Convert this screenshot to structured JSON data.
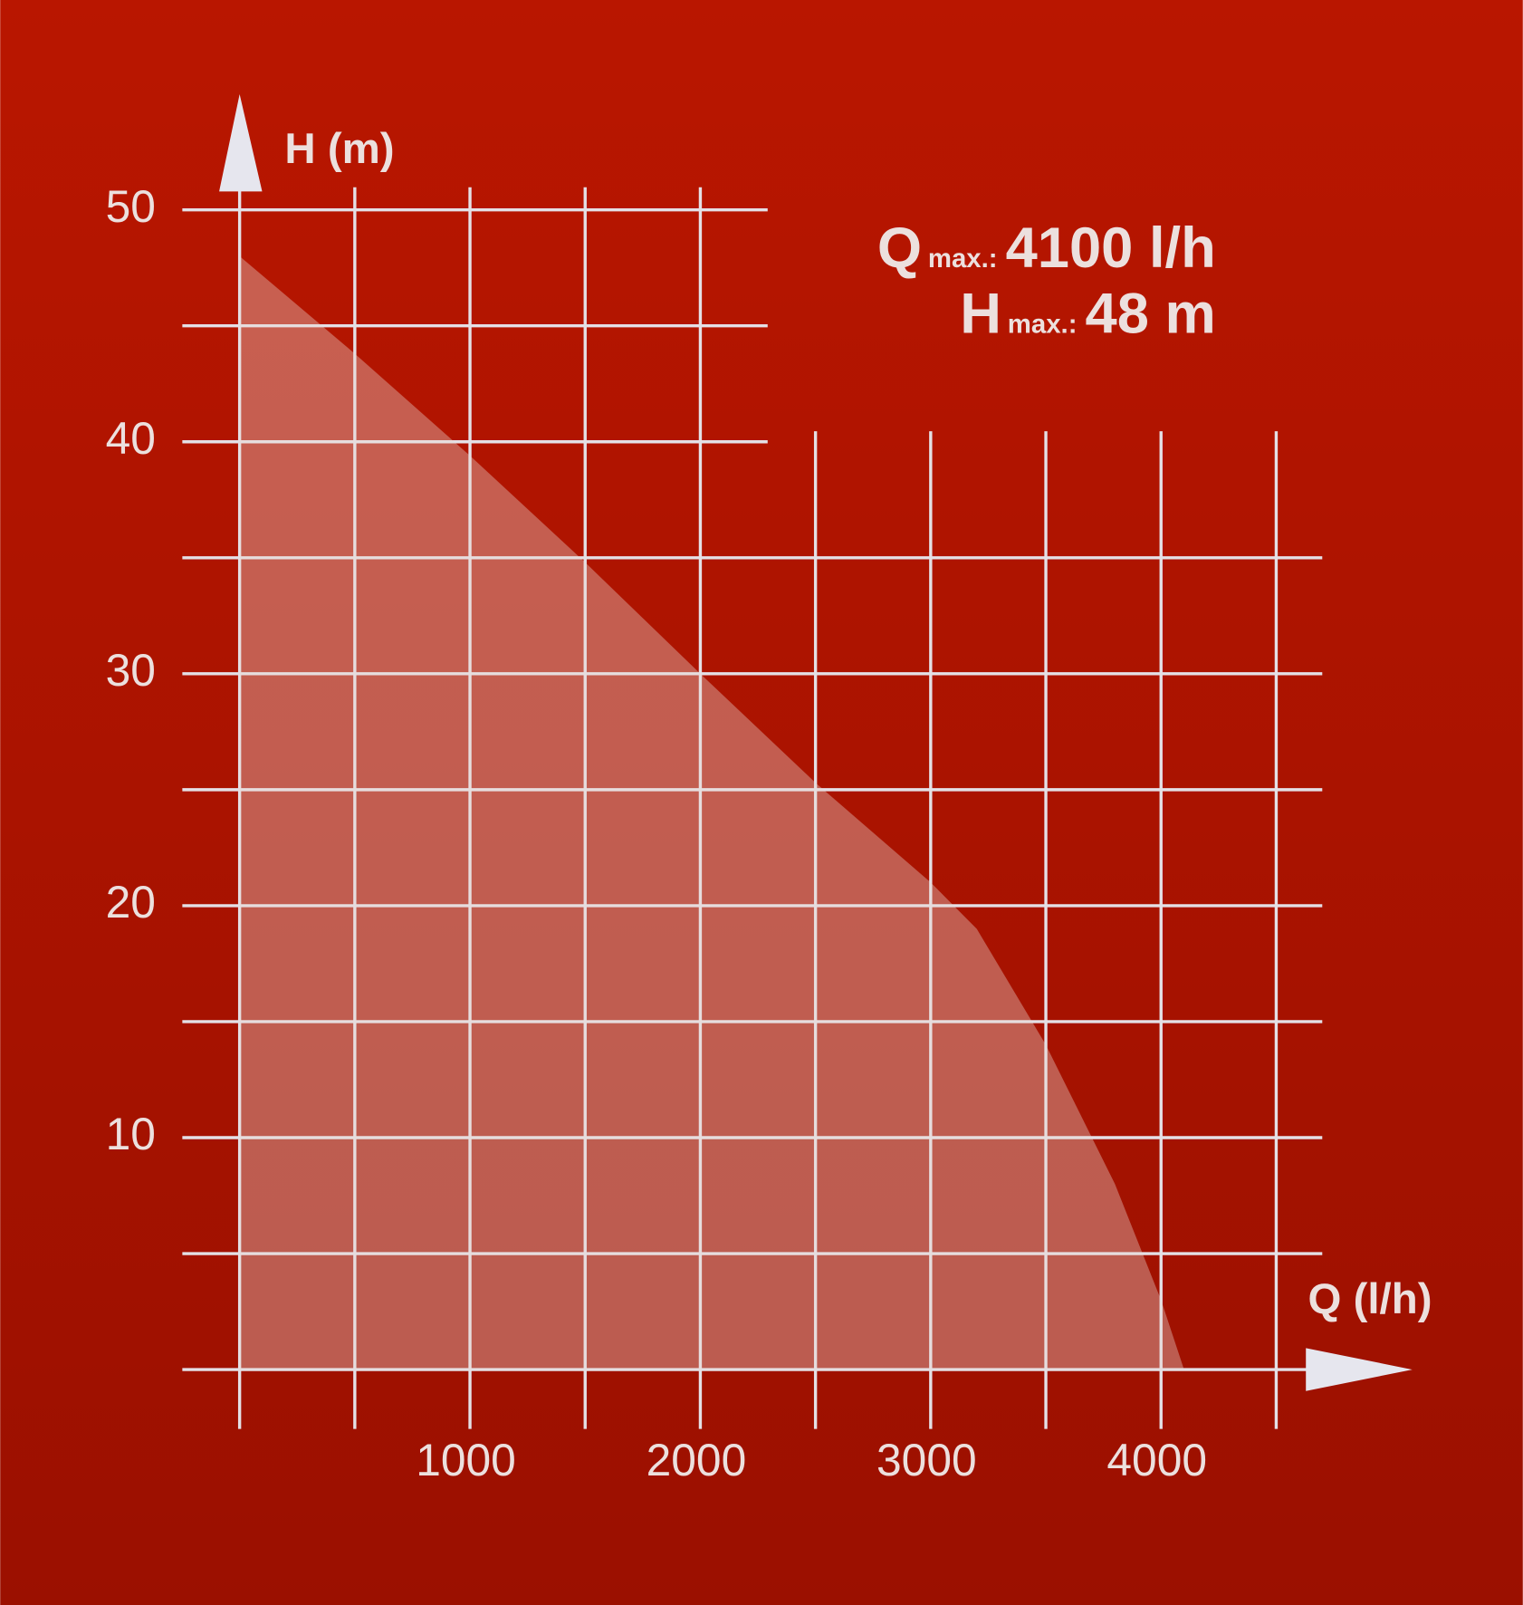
{
  "chart_data": {
    "type": "area",
    "x_label": "Q (l/h)",
    "y_label": "H (m)",
    "x": [
      0,
      500,
      1000,
      1500,
      2000,
      2500,
      3000,
      3200,
      3500,
      3800,
      4000,
      4100
    ],
    "values": [
      48,
      43.8,
      39.4,
      34.8,
      30,
      25.3,
      21,
      19,
      14,
      8,
      3,
      0
    ],
    "color": "rgba(235, 215, 210, 0.38)",
    "xlim": [
      0,
      4500
    ],
    "ylim": [
      0,
      50
    ],
    "xticks": [
      1000,
      2000,
      3000,
      4000
    ],
    "yticks": [
      10,
      20,
      30,
      40,
      50
    ],
    "xgrid": [
      0,
      500,
      1000,
      1500,
      2000,
      2500,
      3000,
      3500,
      4000,
      4500
    ],
    "ygrid": [
      0,
      5,
      10,
      15,
      20,
      25,
      30,
      35,
      40,
      45,
      50
    ],
    "grid": true,
    "annotations": [
      {
        "symbol": "Q",
        "subscript": "max.:",
        "text": "4100 l/h"
      },
      {
        "symbol": "H",
        "subscript": "max.:",
        "text": "48 m"
      }
    ]
  }
}
